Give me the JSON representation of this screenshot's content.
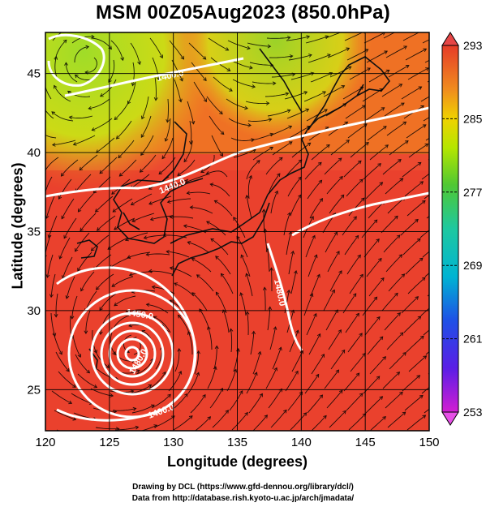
{
  "title": "MSM 00Z05Aug2023 (850.0hPa)",
  "xlabel": "Longitude (degrees)",
  "ylabel": "Latitude  (degrees)",
  "credit_line1": "Drawing by DCL (https://www.gfd-dennou.org/library/dcl/)",
  "credit_line2": "Data from http://database.rish.kyoto-u.ac.jp/arch/jmadata/",
  "map": {
    "lon_range": [
      120,
      150
    ],
    "lat_range": [
      22.4,
      47.6
    ],
    "lon_ticks": [
      "120",
      "125",
      "130",
      "135",
      "140",
      "145",
      "150"
    ],
    "lat_ticks": [
      "25",
      "30",
      "35",
      "40",
      "45"
    ],
    "grid": true,
    "contour_labels": [
      "1400.0",
      "1440.0",
      "1480.0",
      "1480.0",
      "1400.0",
      "1450.0"
    ],
    "typhoon_center": {
      "lon": 126.8,
      "lat": 27.8
    }
  },
  "colorbar": {
    "labels": [
      "293",
      "285",
      "277",
      "269",
      "261",
      "253"
    ],
    "unit_range": [
      253,
      293
    ],
    "colors": [
      "#c800c8",
      "#3232e6",
      "#00c8c8",
      "#32c832",
      "#c8e600",
      "#f0b400",
      "#f05a28",
      "#e6321e"
    ]
  }
}
